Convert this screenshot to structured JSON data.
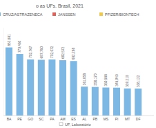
{
  "chart_data": {
    "type": "bar",
    "title": "o as UFs. Brasil, 2021",
    "x_label": "UF, Laboratório",
    "categories": [
      "BA",
      "PE",
      "GO",
      "SC",
      "PA",
      "AM",
      "ES",
      "AL",
      "PB",
      "MS",
      "PI",
      "MT",
      "DF"
    ],
    "series": [
      {
        "name": "CRUZ/ASTRAZENECA",
        "color": "#7db7e3",
        "values": [
          852681,
          770460,
          702767,
          697760,
          702072,
          692572,
          682268,
          361858,
          358170,
          350588,
          348940,
          339210,
          338122
        ],
        "value_labels": [
          "852,681",
          "770,460",
          "702,767",
          "697,760",
          "702,072",
          "692,572",
          "682,268",
          "361,858",
          "358,170",
          "350,588",
          "348,940",
          "339,210",
          "338,122"
        ]
      },
      {
        "name": "JANSSEN",
        "color": "#e0605a",
        "values": [
          null,
          null,
          null,
          null,
          null,
          null,
          null,
          null,
          null,
          null,
          null,
          null,
          null
        ]
      },
      {
        "name": "PFIZER/BIONTECH",
        "color": "#f0c84a",
        "values": [
          null,
          null,
          null,
          null,
          null,
          null,
          null,
          null,
          null,
          null,
          null,
          null,
          null
        ]
      }
    ],
    "stacked": true,
    "data_labels": true,
    "tick_labels": "x",
    "grid": false,
    "ylim": [
      0,
      1100000
    ]
  }
}
